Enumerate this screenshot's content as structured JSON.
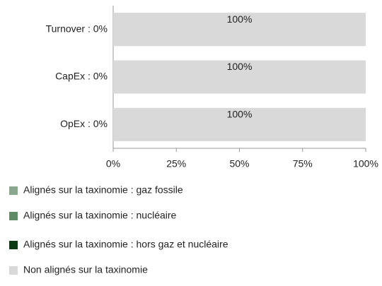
{
  "chart_data": {
    "type": "stacked_bar_horizontal",
    "categories": [
      "Turnover : 0%",
      "CapEx : 0%",
      "OpEx : 0%"
    ],
    "series": [
      {
        "name": "Alignés sur la taxinomie : gaz fossile",
        "color": "#8aa88e",
        "values": [
          0,
          0,
          0
        ]
      },
      {
        "name": "Alignés sur la taxinomie : nucléaire",
        "color": "#5f8c64",
        "values": [
          0,
          0,
          0
        ]
      },
      {
        "name": "Alignés sur la taxinomie : hors gaz et nucléaire",
        "color": "#0c3b12",
        "values": [
          0,
          0,
          0
        ]
      },
      {
        "name": "Non alignés sur la taxinomie",
        "color": "#d9d9d9",
        "values": [
          100,
          100,
          100
        ],
        "value_labels": [
          "100%",
          "100%",
          "100%"
        ]
      }
    ],
    "xlim": [
      0,
      100
    ],
    "xticks": [
      {
        "value": 0,
        "label": "0%"
      },
      {
        "value": 25,
        "label": "25%"
      },
      {
        "value": 50,
        "label": "50%"
      },
      {
        "value": 75,
        "label": "75%"
      },
      {
        "value": 100,
        "label": "100%"
      }
    ],
    "legend": "bottom"
  }
}
